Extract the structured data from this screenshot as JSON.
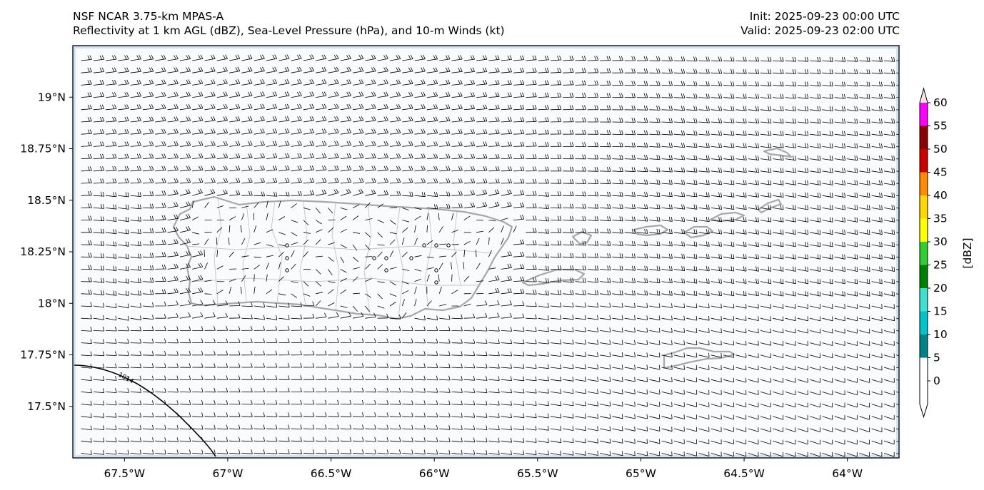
{
  "title": {
    "model": "NSF NCAR 3.75-km MPAS-A",
    "fields": "Reflectivity at 1 km AGL (dBZ), Sea-Level Pressure (hPa), and 10-m Winds (kt)",
    "init": "Init: 2025-09-23 00:00 UTC",
    "valid": "Valid: 2025-09-23 02:00 UTC"
  },
  "map": {
    "lon_range": [
      -67.75,
      -63.75
    ],
    "lat_range": [
      17.25,
      19.25
    ],
    "lon_ticks": [
      -67.5,
      -67.0,
      -66.5,
      -66.0,
      -65.5,
      -65.0,
      -64.5,
      -64.0
    ],
    "lon_tick_labels": [
      "67.5°W",
      "67°W",
      "66.5°W",
      "66°W",
      "65.5°W",
      "65°W",
      "64.5°W",
      "64°W"
    ],
    "lat_ticks": [
      19.0,
      18.75,
      18.5,
      18.25,
      18.0,
      17.75,
      17.5
    ],
    "lat_tick_labels": [
      "19°N",
      "18.75°N",
      "18.5°N",
      "18.25°N",
      "18°N",
      "17.75°N",
      "17.5°N"
    ],
    "isobar_label": "1014",
    "ocean_color": "#d6e3ef",
    "coast_color": "#a8a8a8"
  },
  "colorbar": {
    "label": "[dBZ]",
    "ticks": [
      "0",
      "5",
      "10",
      "15",
      "20",
      "25",
      "30",
      "35",
      "40",
      "45",
      "50",
      "55",
      "60"
    ],
    "colors": [
      "#ffffff",
      "#00828a",
      "#00c3cb",
      "#40e0d0",
      "#008000",
      "#32cd32",
      "#ffff00",
      "#ffd700",
      "#ff8c00",
      "#cd0000",
      "#8b0000",
      "#ff00ff",
      "#ffe4e1"
    ]
  }
}
